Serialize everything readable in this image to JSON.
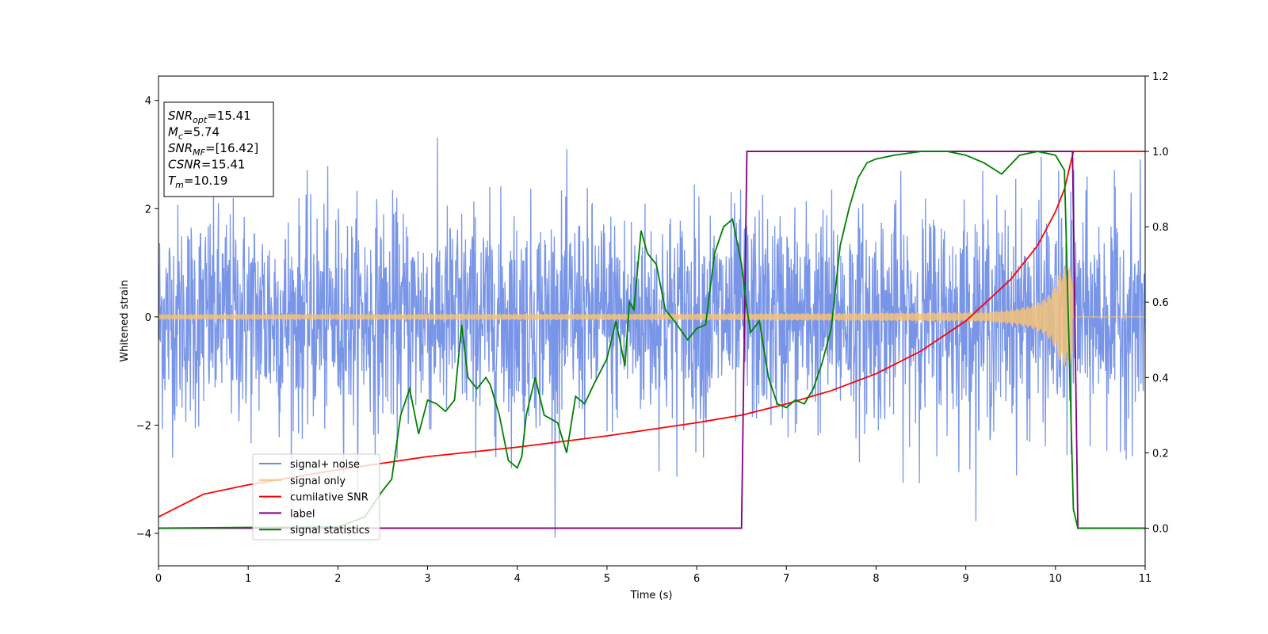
{
  "chart_data": {
    "type": "line",
    "xlabel": "Time (s)",
    "ylabel": "Whitened strain",
    "xlim": [
      0,
      11
    ],
    "ylim_left": [
      -4.6,
      4.45
    ],
    "ylim_right": [
      -0.1,
      1.2
    ],
    "x_ticks": [
      0,
      1,
      2,
      3,
      4,
      5,
      6,
      7,
      8,
      9,
      10,
      11
    ],
    "y_ticks_left": [
      -4,
      -2,
      0,
      2,
      4
    ],
    "y_ticks_right": [
      0.0,
      0.2,
      0.4,
      0.6,
      0.8,
      1.0,
      1.2
    ],
    "grid": false,
    "legend_position": "lower-left",
    "info_box": {
      "lines": [
        {
          "symbol": "SNR",
          "sub": "opt",
          "value": "=15.41"
        },
        {
          "symbol": "M",
          "sub": "c",
          "value": "=5.74"
        },
        {
          "symbol": "SNR",
          "sub": "MF",
          "value": "=[16.42]"
        },
        {
          "symbol": "CSNR",
          "sub": "",
          "value": "=15.41"
        },
        {
          "symbol": "T",
          "sub": "m",
          "value": "=10.19"
        }
      ]
    },
    "series": [
      {
        "name": "signal+ noise",
        "axis": "left",
        "color": "#6a8ae6",
        "noise_sigma": 1.0,
        "noise_max_abs": 4.1
      },
      {
        "name": "signal only",
        "axis": "left",
        "color": "#f5c27a",
        "amplitude_start": 0.05,
        "amplitude_end": 0.92,
        "merger_time": 10.19
      },
      {
        "name": "cumilative SNR",
        "axis": "right",
        "color": "#ff0000",
        "x": [
          0,
          0.5,
          1,
          2,
          3,
          4,
          5,
          6,
          6.5,
          7,
          7.5,
          8,
          8.5,
          9,
          9.5,
          9.8,
          10.0,
          10.1,
          10.19,
          10.2,
          11
        ],
        "y": [
          0.03,
          0.09,
          0.115,
          0.155,
          0.19,
          0.215,
          0.245,
          0.28,
          0.3,
          0.33,
          0.365,
          0.41,
          0.47,
          0.55,
          0.66,
          0.75,
          0.84,
          0.9,
          0.99,
          1.0,
          1.0
        ]
      },
      {
        "name": "label",
        "axis": "right",
        "color": "#800080",
        "x": [
          0,
          6.5,
          6.56,
          10.19,
          10.25,
          11
        ],
        "y": [
          0,
          0,
          1,
          1,
          0,
          0
        ]
      },
      {
        "name": "signal statistics",
        "axis": "right",
        "color": "#008000",
        "x": [
          0,
          1,
          2,
          2.3,
          2.5,
          2.6,
          2.7,
          2.8,
          2.9,
          3.0,
          3.1,
          3.2,
          3.3,
          3.38,
          3.45,
          3.55,
          3.65,
          3.7,
          3.8,
          3.9,
          4.0,
          4.05,
          4.1,
          4.2,
          4.3,
          4.45,
          4.55,
          4.65,
          4.75,
          4.85,
          5.0,
          5.1,
          5.2,
          5.25,
          5.3,
          5.38,
          5.45,
          5.55,
          5.65,
          5.75,
          5.9,
          6.0,
          6.1,
          6.2,
          6.3,
          6.4,
          6.5,
          6.55,
          6.6,
          6.7,
          6.8,
          6.9,
          7.0,
          7.1,
          7.2,
          7.3,
          7.4,
          7.5,
          7.6,
          7.7,
          7.8,
          7.9,
          8.0,
          8.2,
          8.5,
          8.8,
          9.0,
          9.2,
          9.4,
          9.6,
          9.8,
          10.0,
          10.1,
          10.15,
          10.2,
          10.25,
          10.3,
          10.5,
          11
        ],
        "y": [
          0,
          0.002,
          0.003,
          0.03,
          0.1,
          0.13,
          0.3,
          0.37,
          0.25,
          0.34,
          0.33,
          0.31,
          0.34,
          0.54,
          0.4,
          0.37,
          0.4,
          0.38,
          0.3,
          0.18,
          0.16,
          0.19,
          0.3,
          0.4,
          0.3,
          0.28,
          0.2,
          0.35,
          0.33,
          0.38,
          0.45,
          0.55,
          0.43,
          0.6,
          0.58,
          0.79,
          0.73,
          0.7,
          0.58,
          0.55,
          0.5,
          0.53,
          0.54,
          0.73,
          0.8,
          0.82,
          0.7,
          0.6,
          0.52,
          0.55,
          0.4,
          0.33,
          0.32,
          0.34,
          0.33,
          0.37,
          0.44,
          0.53,
          0.75,
          0.85,
          0.93,
          0.97,
          0.98,
          0.99,
          1.0,
          1.0,
          0.99,
          0.97,
          0.94,
          0.99,
          1.0,
          0.99,
          0.95,
          0.5,
          0.05,
          0.0,
          0.0,
          0.0,
          0.0
        ]
      }
    ]
  }
}
